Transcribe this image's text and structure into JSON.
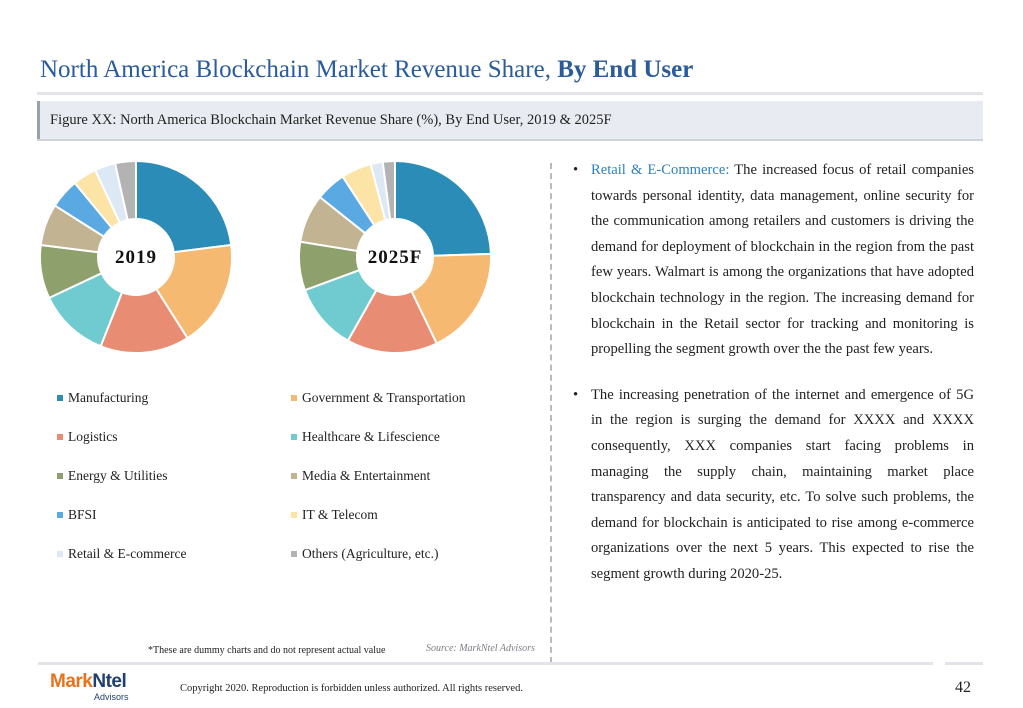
{
  "page": {
    "title_main": "North America Blockchain Market Revenue Share,",
    "title_bold": "By End User",
    "figure_caption": "Figure XX: North America Blockchain Market Revenue Share (%), By End User, 2019 & 2025F",
    "note": "*These are dummy charts and do not represent actual value",
    "source": "Source: MarkNtel Advisors",
    "copyright": "Copyright 2020. Reproduction is forbidden unless authorized. All rights reserved.",
    "page_number": "42",
    "logo": {
      "mark": "Mark",
      "ntel": "Ntel",
      "sub": "Advisors"
    }
  },
  "legend": [
    {
      "label": "Manufacturing",
      "color": "#2b8cb8"
    },
    {
      "label": "Government & Transportation",
      "color": "#f5b971"
    },
    {
      "label": "Logistics",
      "color": "#e88c74"
    },
    {
      "label": "Healthcare & Lifescience",
      "color": "#6fcbd0"
    },
    {
      "label": "Energy & Utilities",
      "color": "#8ea06c"
    },
    {
      "label": "Media & Entertainment",
      "color": "#c2b393"
    },
    {
      "label": "BFSI",
      "color": "#5aa9e2"
    },
    {
      "label": "IT & Telecom",
      "color": "#fce3a6"
    },
    {
      "label": "Retail & E-commerce",
      "color": "#dce9f4"
    },
    {
      "label": "Others (Agriculture, etc.)",
      "color": "#b3b3b3"
    }
  ],
  "chart_data": [
    {
      "type": "pie",
      "title": "2019",
      "categories": [
        "Manufacturing",
        "Government & Transportation",
        "Logistics",
        "Healthcare & Lifescience",
        "Energy & Utilities",
        "Media & Entertainment",
        "BFSI",
        "IT & Telecom",
        "Retail & E-commerce",
        "Others (Agriculture, etc.)"
      ],
      "values": [
        23,
        18,
        15,
        12,
        9,
        7,
        5,
        4,
        3.5,
        3.5
      ]
    },
    {
      "type": "pie",
      "title": "2025F",
      "categories": [
        "Manufacturing",
        "Government & Transportation",
        "Logistics",
        "Healthcare & Lifescience",
        "Energy & Utilities",
        "Media & Entertainment",
        "BFSI",
        "IT & Telecom",
        "Retail & E-commerce",
        "Others (Agriculture, etc.)"
      ],
      "values": [
        24,
        18,
        15,
        11,
        8,
        8,
        5,
        5,
        2,
        2
      ]
    }
  ],
  "bullets": [
    {
      "highlight": "Retail & E-Commerce:",
      "text": " The increased focus of retail companies towards personal identity, data management, online security for the communication among retailers and customers is driving the demand for deployment of blockchain in the region from the past few years. Walmart is among the organizations that have adopted blockchain technology in the region. The increasing demand for blockchain in the Retail sector for tracking and monitoring is propelling the segment growth over the the past few years."
    },
    {
      "highlight": "",
      "text": "The increasing penetration of the internet and emergence of 5G in the region is surging the demand for XXXX and XXXX consequently, XXX companies start facing problems in managing the supply chain, maintaining market place transparency and data security, etc. To solve such problems, the demand for blockchain is anticipated to rise among e-commerce organizations over the next 5 years. This expected to rise the segment growth during 2020-25."
    }
  ]
}
